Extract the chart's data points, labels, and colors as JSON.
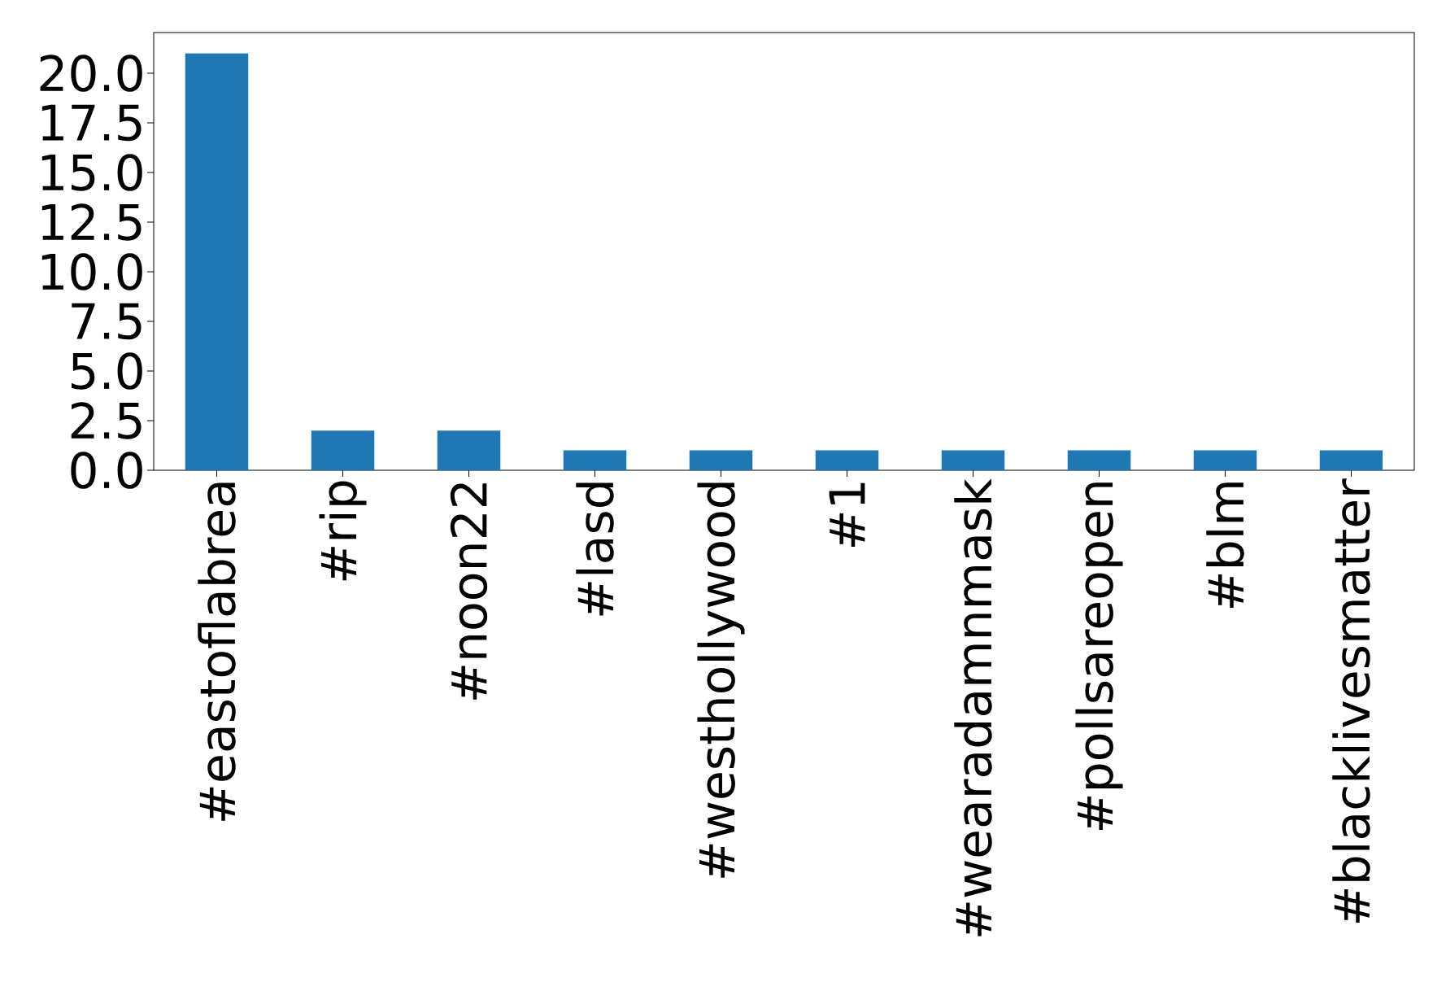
{
  "chart_data": {
    "type": "bar",
    "categories": [
      "#eastoflabrea",
      "#rip",
      "#noon22",
      "#lasd",
      "#westhollywood",
      "#1",
      "#wearadamnmask",
      "#pollsareopen",
      "#blm",
      "#blacklivesmatter"
    ],
    "values": [
      21,
      2,
      2,
      1,
      1,
      1,
      1,
      1,
      1,
      1
    ],
    "color": "#1f77b4",
    "ylim": [
      0,
      22.05
    ],
    "yticks": [
      {
        "value": 0,
        "label": "0.0"
      },
      {
        "value": 2.5,
        "label": "2.5"
      },
      {
        "value": 5,
        "label": "5.0"
      },
      {
        "value": 7.5,
        "label": "7.5"
      },
      {
        "value": 10,
        "label": "10.0"
      },
      {
        "value": 12.5,
        "label": "12.5"
      },
      {
        "value": 15,
        "label": "15.0"
      },
      {
        "value": 17.5,
        "label": "17.5"
      },
      {
        "value": 20,
        "label": "20.0"
      }
    ],
    "grid": false
  }
}
